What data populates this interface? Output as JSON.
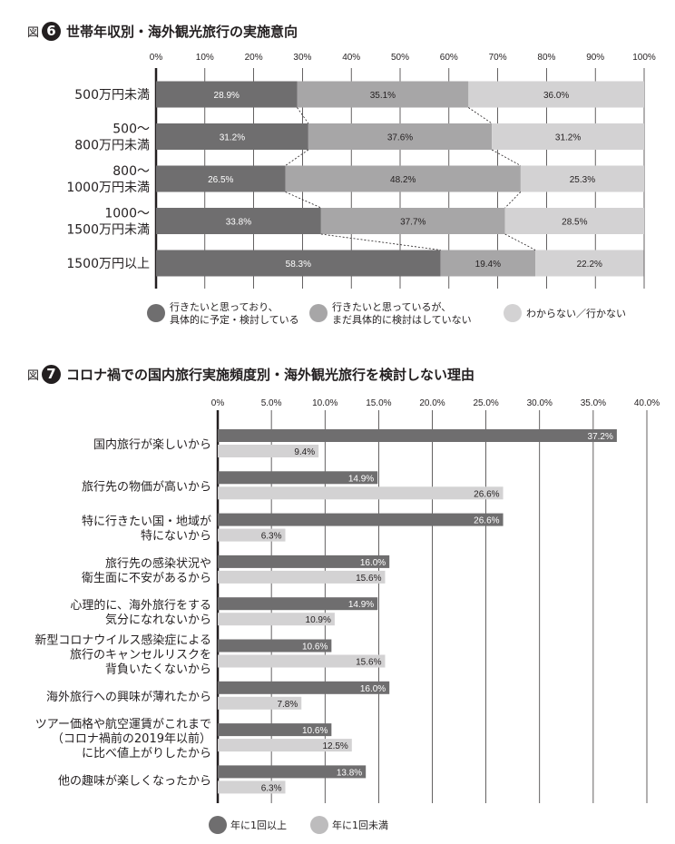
{
  "figure6": {
    "fig_prefix": "図",
    "fig_number": "6",
    "title": "世帯年収別・海外観光旅行の実施意向"
  },
  "figure7": {
    "fig_prefix": "図",
    "fig_number": "7",
    "title": "コロナ禍での国内旅行実施頻度別・海外観光旅行を検討しない理由"
  },
  "colors": {
    "dark": "#6f6e6f",
    "mid": "#a7a6a7",
    "light": "#d3d2d3",
    "axis": "#231f20"
  },
  "chart_data": [
    {
      "type": "bar",
      "subtype": "stacked-horizontal-100",
      "title": "世帯年収別・海外観光旅行の実施意向",
      "categories": [
        [
          "500万円未満"
        ],
        [
          "500〜",
          "800万円未満"
        ],
        [
          "800〜",
          "1000万円未満"
        ],
        [
          "1000〜",
          "1500万円未満"
        ],
        [
          "1500万円以上"
        ]
      ],
      "series": [
        {
          "name": "行きたいと思っており、具体的に予定・検討している",
          "values": [
            28.9,
            31.2,
            26.5,
            33.8,
            58.3
          ]
        },
        {
          "name": "行きたいと思っているが、まだ具体的に検討はしていない",
          "values": [
            35.1,
            37.6,
            48.2,
            37.7,
            19.4
          ]
        },
        {
          "name": "わからない／行かない",
          "values": [
            36.0,
            31.2,
            25.3,
            28.5,
            22.2
          ]
        }
      ],
      "value_labels": [
        [
          "28.9%",
          "31.2%",
          "26.5%",
          "33.8%",
          "58.3%"
        ],
        [
          "35.1%",
          "37.6%",
          "48.2%",
          "37.7%",
          "19.4%"
        ],
        [
          "36.0%",
          "31.2%",
          "25.3%",
          "28.5%",
          "22.2%"
        ]
      ],
      "legend_labels": [
        [
          "行きたいと思っており、",
          "具体的に予定・検討している"
        ],
        [
          "行きたいと思っているが、",
          "まだ具体的に検討はしていない"
        ],
        [
          "わからない／行かない"
        ]
      ],
      "xlim": [
        0,
        100
      ],
      "xticks": [
        "0%",
        "10%",
        "20%",
        "30%",
        "40%",
        "50%",
        "60%",
        "70%",
        "80%",
        "90%",
        "100%"
      ],
      "grid": true,
      "legend_position": "bottom"
    },
    {
      "type": "bar",
      "subtype": "grouped-horizontal",
      "title": "コロナ禍での国内旅行実施頻度別・海外観光旅行を検討しない理由",
      "categories": [
        [
          "国内旅行が楽しいから"
        ],
        [
          "旅行先の物価が高いから"
        ],
        [
          "特に行きたい国・地域が",
          "特にないから"
        ],
        [
          "旅行先の感染状況や",
          "衛生面に不安があるから"
        ],
        [
          "心理的に、海外旅行をする",
          "気分になれないから"
        ],
        [
          "新型コロナウイルス感染症による",
          "旅行のキャンセルリスクを",
          "背負いたくないから"
        ],
        [
          "海外旅行への興味が薄れたから"
        ],
        [
          "ツアー価格や航空運賃がこれまで",
          "（コロナ禍前の2019年以前）",
          "に比べ値上がりしたから"
        ],
        [
          "他の趣味が楽しくなったから"
        ]
      ],
      "series": [
        {
          "name": "年に1回以上",
          "values": [
            37.2,
            14.9,
            26.6,
            16.0,
            14.9,
            10.6,
            16.0,
            10.6,
            13.8
          ]
        },
        {
          "name": "年に1回未満",
          "values": [
            9.4,
            26.6,
            6.3,
            15.6,
            10.9,
            15.6,
            7.8,
            12.5,
            6.3
          ]
        }
      ],
      "value_labels": [
        [
          "37.2%",
          "14.9%",
          "26.6%",
          "16.0%",
          "14.9%",
          "10.6%",
          "16.0%",
          "10.6%",
          "13.8%"
        ],
        [
          "9.4%",
          "26.6%",
          "6.3%",
          "15.6%",
          "10.9%",
          "15.6%",
          "7.8%",
          "12.5%",
          "6.3%"
        ]
      ],
      "legend_labels": [
        "年に1回以上",
        "年に1回未満"
      ],
      "xlim": [
        0,
        40
      ],
      "xticks": [
        "0%",
        "5.0%",
        "10.0%",
        "15.0%",
        "20.0%",
        "25.0%",
        "30.0%",
        "35.0%",
        "40.0%"
      ],
      "grid": true,
      "legend_position": "bottom"
    }
  ]
}
